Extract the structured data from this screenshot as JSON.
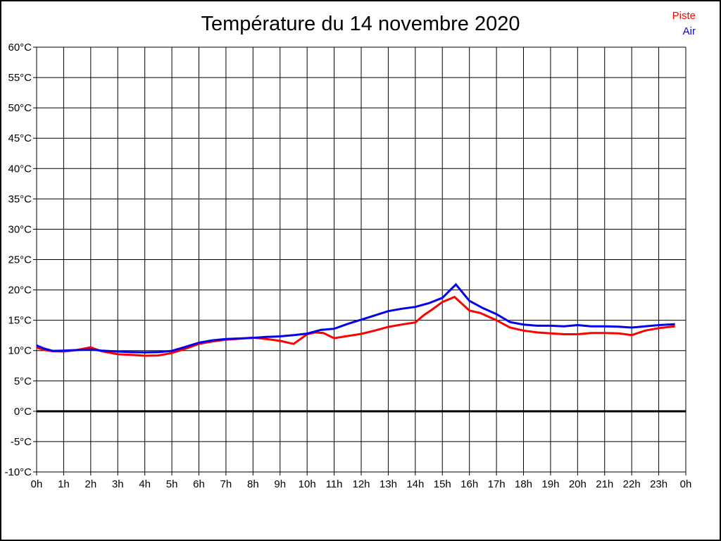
{
  "chart": {
    "title": "Température du 14 novembre 2020"
  },
  "chart_data": {
    "type": "line",
    "title": "Température du 14 novembre 2020",
    "xlabel": "",
    "ylabel": "",
    "x_unit": "hours",
    "xlim": [
      0,
      24
    ],
    "ylim": [
      -10,
      60
    ],
    "x_tick_step_hours": 1,
    "y_tick_step_degrees": 5,
    "x_tick_labels": [
      "0h",
      "1h",
      "2h",
      "3h",
      "4h",
      "5h",
      "6h",
      "7h",
      "8h",
      "9h",
      "10h",
      "11h",
      "12h",
      "13h",
      "14h",
      "15h",
      "16h",
      "17h",
      "18h",
      "19h",
      "20h",
      "21h",
      "22h",
      "23h",
      "0h"
    ],
    "y_tick_labels": [
      "60°C",
      "55°C",
      "50°C",
      "45°C",
      "40°C",
      "35°C",
      "30°C",
      "25°C",
      "20°C",
      "15°C",
      "10°C",
      "5°C",
      "0°C",
      "-5°C",
      "-10°C"
    ],
    "grid": true,
    "grid_color": "#000000",
    "zero_line": {
      "value": 0,
      "color": "#000000",
      "width": 3
    },
    "legend_position": "top-right",
    "series": [
      {
        "name": "Piste",
        "color": "#ff0000",
        "points": [
          [
            0,
            10.5
          ],
          [
            0.3,
            10.1
          ],
          [
            0.6,
            9.9
          ],
          [
            1,
            9.85
          ],
          [
            1.5,
            10.1
          ],
          [
            2,
            10.55
          ],
          [
            2.4,
            9.9
          ],
          [
            3,
            9.4
          ],
          [
            3.5,
            9.3
          ],
          [
            4,
            9.15
          ],
          [
            4.5,
            9.2
          ],
          [
            5,
            9.6
          ],
          [
            5.5,
            10.3
          ],
          [
            6,
            11.1
          ],
          [
            6.5,
            11.5
          ],
          [
            7,
            11.8
          ],
          [
            7.5,
            11.95
          ],
          [
            8,
            12.15
          ],
          [
            8.5,
            11.9
          ],
          [
            9,
            11.6
          ],
          [
            9.5,
            11.1
          ],
          [
            10,
            12.7
          ],
          [
            10.3,
            13.0
          ],
          [
            10.6,
            12.9
          ],
          [
            11,
            12.05
          ],
          [
            11.5,
            12.4
          ],
          [
            12,
            12.75
          ],
          [
            12.5,
            13.3
          ],
          [
            13,
            13.9
          ],
          [
            13.5,
            14.3
          ],
          [
            14,
            14.65
          ],
          [
            14.3,
            15.8
          ],
          [
            14.6,
            16.7
          ],
          [
            15,
            18.0
          ],
          [
            15.45,
            18.85
          ],
          [
            16,
            16.6
          ],
          [
            16.4,
            16.2
          ],
          [
            17,
            15.0
          ],
          [
            17.5,
            13.8
          ],
          [
            18,
            13.3
          ],
          [
            18.5,
            13.0
          ],
          [
            19,
            12.85
          ],
          [
            19.5,
            12.7
          ],
          [
            20,
            12.7
          ],
          [
            20.5,
            12.9
          ],
          [
            21,
            12.9
          ],
          [
            21.5,
            12.85
          ],
          [
            22,
            12.55
          ],
          [
            22.5,
            13.3
          ],
          [
            23,
            13.7
          ],
          [
            23.6,
            14.0
          ]
        ]
      },
      {
        "name": "Air",
        "color": "#0000ee",
        "points": [
          [
            0,
            10.85
          ],
          [
            0.3,
            10.3
          ],
          [
            0.6,
            9.95
          ],
          [
            1,
            10.0
          ],
          [
            1.5,
            10.1
          ],
          [
            2,
            10.2
          ],
          [
            2.4,
            10.0
          ],
          [
            3,
            9.85
          ],
          [
            3.5,
            9.75
          ],
          [
            4,
            9.7
          ],
          [
            4.5,
            9.75
          ],
          [
            5,
            9.95
          ],
          [
            5.5,
            10.6
          ],
          [
            6,
            11.3
          ],
          [
            6.5,
            11.7
          ],
          [
            7,
            11.9
          ],
          [
            7.5,
            12.0
          ],
          [
            8,
            12.1
          ],
          [
            8.5,
            12.25
          ],
          [
            9,
            12.35
          ],
          [
            9.5,
            12.55
          ],
          [
            10,
            12.8
          ],
          [
            10.5,
            13.4
          ],
          [
            11,
            13.6
          ],
          [
            11.5,
            14.4
          ],
          [
            12,
            15.1
          ],
          [
            12.5,
            15.8
          ],
          [
            13,
            16.5
          ],
          [
            13.5,
            16.9
          ],
          [
            14,
            17.2
          ],
          [
            14.5,
            17.8
          ],
          [
            15,
            18.7
          ],
          [
            15.5,
            20.9
          ],
          [
            16,
            18.2
          ],
          [
            16.5,
            17.0
          ],
          [
            17,
            16.0
          ],
          [
            17.5,
            14.7
          ],
          [
            18,
            14.3
          ],
          [
            18.5,
            14.1
          ],
          [
            19,
            14.1
          ],
          [
            19.5,
            14.0
          ],
          [
            20,
            14.2
          ],
          [
            20.5,
            14.0
          ],
          [
            21,
            14.0
          ],
          [
            21.5,
            13.95
          ],
          [
            22,
            13.8
          ],
          [
            22.5,
            14.0
          ],
          [
            23,
            14.2
          ],
          [
            23.6,
            14.35
          ]
        ]
      }
    ]
  }
}
